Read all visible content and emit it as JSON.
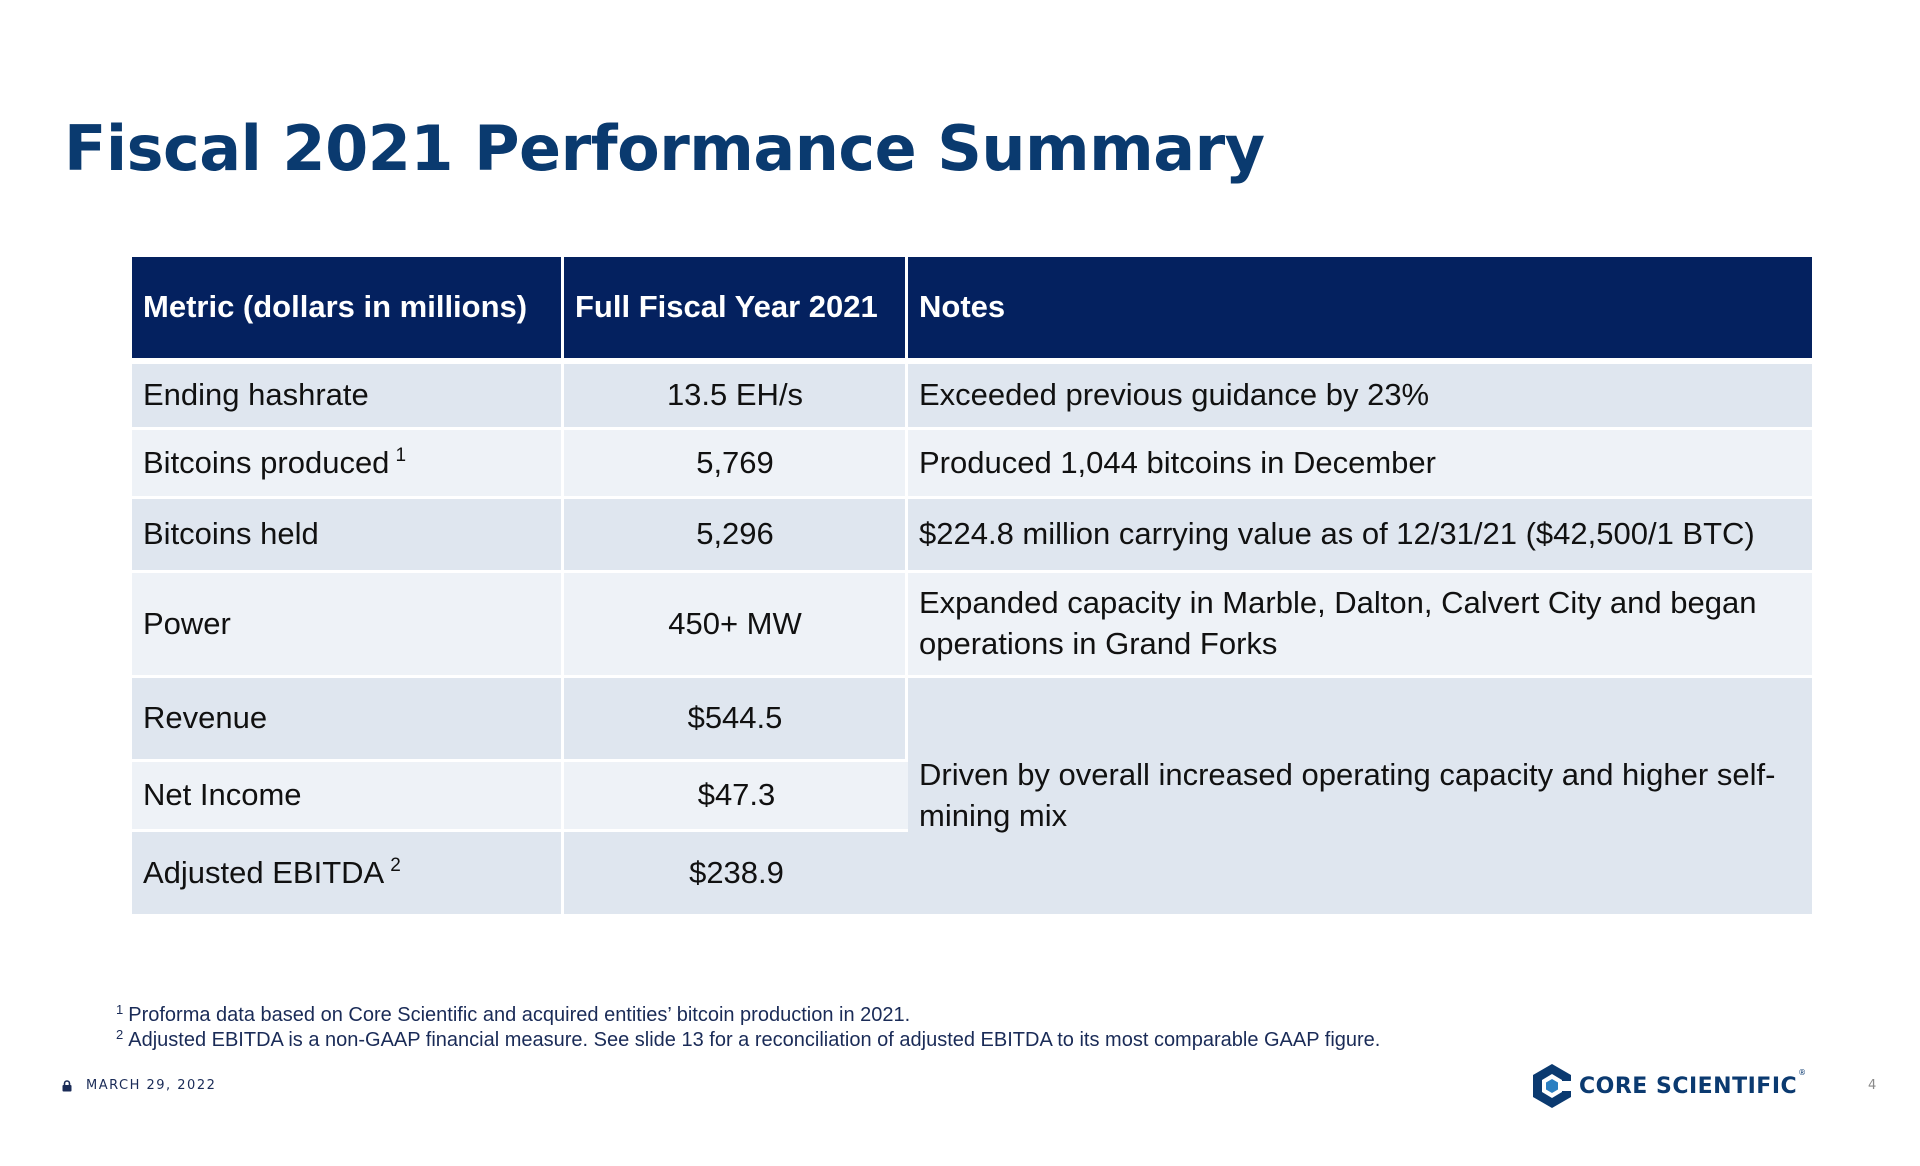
{
  "slide": {
    "title": "Fiscal 2021 Performance Summary",
    "page_number": "4"
  },
  "table": {
    "headers": [
      "Metric (dollars in millions)",
      "Full Fiscal Year 2021",
      "Notes"
    ],
    "rows": [
      {
        "metric": "Ending hashrate",
        "value": "13.5 EH/s",
        "note": "Exceeded previous guidance by 23%"
      },
      {
        "metric": "Bitcoins produced",
        "footnote_ref": "1",
        "value": "5,769",
        "note": "Produced 1,044 bitcoins in December"
      },
      {
        "metric": "Bitcoins held",
        "value": "5,296",
        "note": "$224.8 million carrying value as of 12/31/21 ($42,500/1 BTC)"
      },
      {
        "metric": "Power",
        "value": "450+ MW",
        "note": "Expanded capacity in Marble, Dalton, Calvert City and began operations in Grand Forks"
      },
      {
        "metric": "Revenue",
        "value": "$544.5",
        "note": "Driven by overall increased operating capacity and higher self-mining mix"
      },
      {
        "metric": "Net Income",
        "value": "$47.3"
      },
      {
        "metric": "Adjusted EBITDA",
        "footnote_ref": "2",
        "value": "$238.9"
      }
    ]
  },
  "footnotes": [
    {
      "marker": "1",
      "text": "Proforma data based on Core Scientific and acquired entities’ bitcoin production in 2021."
    },
    {
      "marker": "2",
      "text": "Adjusted EBITDA is a non-GAAP financial measure. See slide 13 for a reconciliation of adjusted EBITDA to its most comparable GAAP figure."
    }
  ],
  "footer": {
    "date": "MARCH 29, 2022",
    "date_icon": "lock-icon"
  },
  "logo": {
    "text": "CORE SCIENTIFIC",
    "registered": "®",
    "icon": "hexagon-logo-icon"
  },
  "colors": {
    "title": "#0a3a6f",
    "header_background": "#04215f",
    "header_text": "#ffffff",
    "row_dark": "#dfe6ef",
    "row_light": "#eef2f7",
    "logo_blue": "#0b3a70"
  }
}
